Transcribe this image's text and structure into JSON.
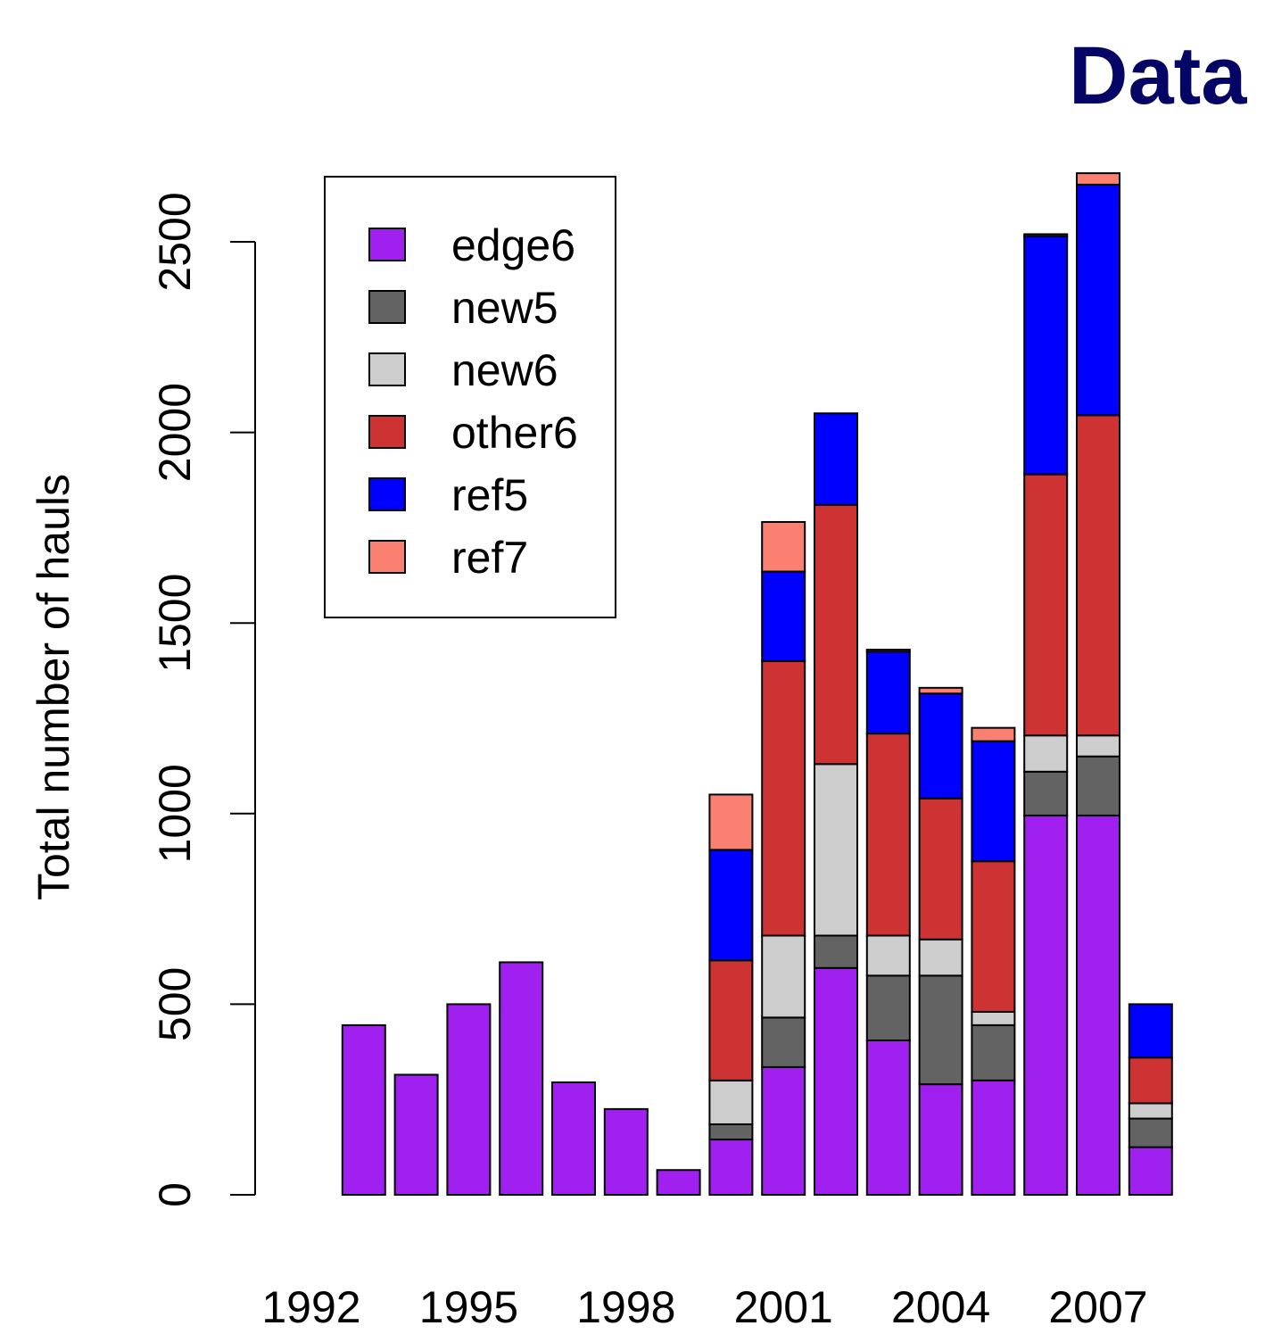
{
  "chart_data": {
    "type": "bar",
    "stacked": true,
    "title": "Data",
    "xlabel": "",
    "ylabel": "Total number of hauls",
    "ylim": [
      0,
      2700
    ],
    "yticks": [
      0,
      500,
      1000,
      1500,
      2000,
      2500
    ],
    "grid": false,
    "legend_position": "top-left",
    "categories": [
      "1992",
      "1993",
      "1994",
      "1995",
      "1996",
      "1997",
      "1998",
      "1999",
      "2000",
      "2001",
      "2002",
      "2003",
      "2004",
      "2005",
      "2006",
      "2007",
      "2008"
    ],
    "x_tick_labels": [
      "1992",
      "1995",
      "1998",
      "2001",
      "2004",
      "2007"
    ],
    "series": [
      {
        "name": "edge6",
        "color": "#a020f0",
        "values": [
          0,
          445,
          315,
          500,
          610,
          295,
          225,
          65,
          145,
          335,
          595,
          405,
          290,
          300,
          995,
          995,
          125
        ]
      },
      {
        "name": "new5",
        "color": "#636363",
        "values": [
          0,
          0,
          0,
          0,
          0,
          0,
          0,
          0,
          40,
          130,
          85,
          170,
          285,
          145,
          115,
          155,
          75
        ]
      },
      {
        "name": "new6",
        "color": "#cdcdcd",
        "values": [
          0,
          0,
          0,
          0,
          0,
          0,
          0,
          0,
          115,
          215,
          450,
          105,
          95,
          35,
          95,
          55,
          40
        ]
      },
      {
        "name": "other6",
        "color": "#cd3333",
        "values": [
          0,
          0,
          0,
          0,
          0,
          0,
          0,
          0,
          315,
          720,
          680,
          530,
          370,
          395,
          685,
          840,
          120
        ]
      },
      {
        "name": "ref5",
        "color": "#0000ff",
        "values": [
          0,
          0,
          0,
          0,
          0,
          0,
          0,
          0,
          290,
          235,
          240,
          215,
          275,
          315,
          625,
          605,
          140
        ]
      },
      {
        "name": "ref7",
        "color": "#fa8072",
        "values": [
          0,
          0,
          0,
          0,
          0,
          0,
          0,
          0,
          145,
          130,
          0,
          5,
          15,
          35,
          5,
          30,
          0
        ]
      }
    ]
  }
}
